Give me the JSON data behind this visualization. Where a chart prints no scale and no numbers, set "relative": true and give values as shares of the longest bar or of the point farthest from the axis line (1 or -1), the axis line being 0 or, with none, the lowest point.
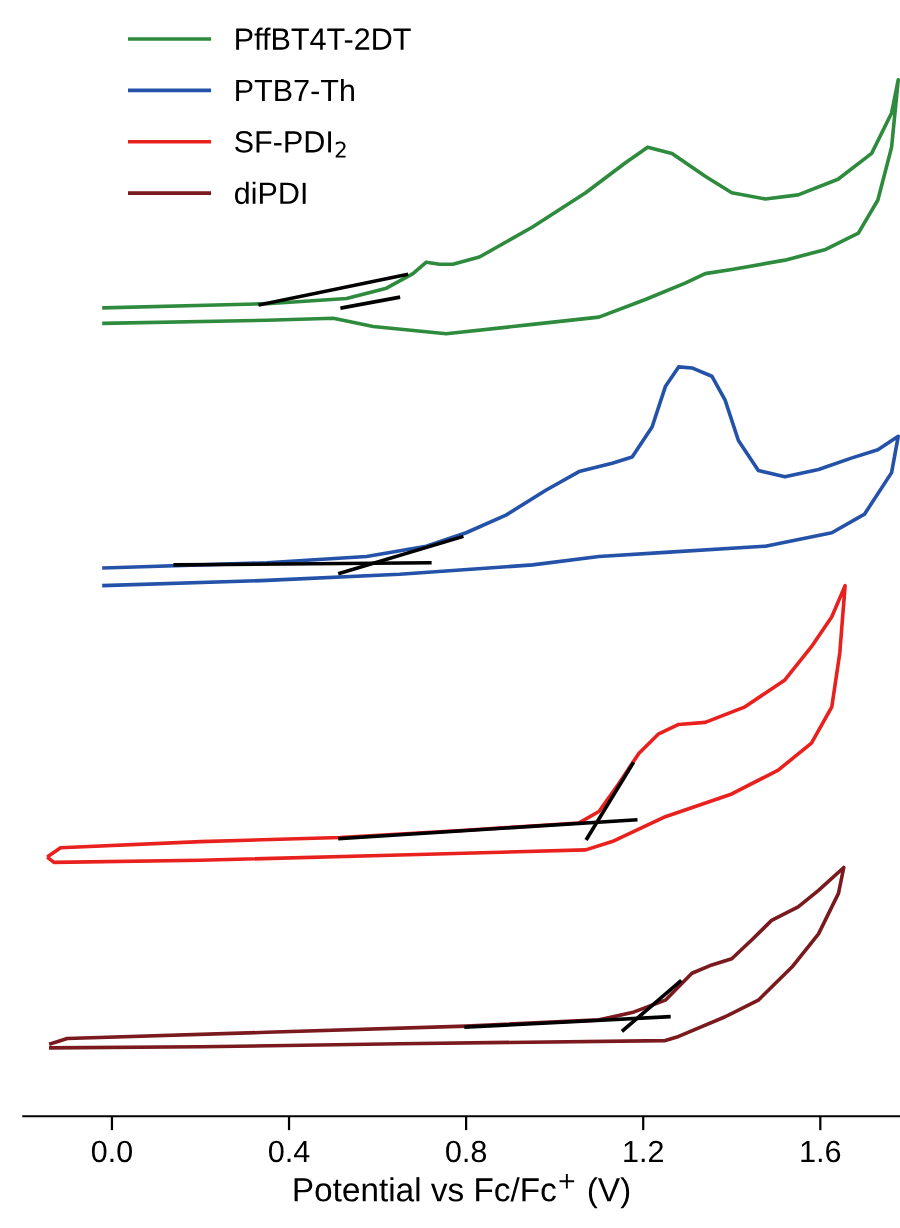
{
  "chart_data": {
    "type": "line",
    "relative": true,
    "xlabel": "Potential vs Fc/Fc$^{+}$ (V)",
    "xlim": [
      -0.2,
      1.78
    ],
    "xticks": [
      {
        "value": 0.0,
        "label": "0.0"
      },
      {
        "value": 0.4,
        "label": "0.4"
      },
      {
        "value": 0.8,
        "label": "0.8"
      },
      {
        "value": 1.2,
        "label": "1.2"
      },
      {
        "value": 1.6,
        "label": "1.6"
      }
    ],
    "grid": false,
    "legend": "top left",
    "marker": "none",
    "line_style": "solid",
    "series": [
      {
        "name": "PffBT4T-2DT",
        "color": "#2e8b3e",
        "x": [
          -0.018,
          0.35,
          0.53,
          0.62,
          0.68,
          0.71,
          0.74,
          0.77,
          0.83,
          0.95,
          1.07,
          1.16,
          1.21,
          1.265,
          1.34,
          1.4,
          1.476,
          1.55,
          1.64,
          1.716,
          1.761,
          1.776,
          1.761,
          1.73,
          1.686,
          1.61,
          1.52,
          1.4,
          1.34,
          1.296,
          1.205,
          1.1,
          0.95,
          0.755,
          0.59,
          0.5,
          0.35,
          -0.018
        ],
        "values": [
          0.78,
          0.784,
          0.789,
          0.799,
          0.813,
          0.824,
          0.822,
          0.822,
          0.829,
          0.858,
          0.891,
          0.92,
          0.935,
          0.929,
          0.907,
          0.891,
          0.885,
          0.889,
          0.904,
          0.929,
          0.968,
          1.0,
          0.935,
          0.884,
          0.852,
          0.836,
          0.826,
          0.817,
          0.813,
          0.804,
          0.788,
          0.771,
          0.764,
          0.755,
          0.762,
          0.77,
          0.768,
          0.765
        ]
      },
      {
        "name": "PTB7-Th",
        "color": "#2352a8",
        "x": [
          -0.018,
          0.35,
          0.575,
          0.71,
          0.8,
          0.89,
          0.98,
          1.055,
          1.13,
          1.175,
          1.22,
          1.25,
          1.28,
          1.31,
          1.355,
          1.385,
          1.415,
          1.46,
          1.52,
          1.596,
          1.67,
          1.73,
          1.776,
          1.761,
          1.7,
          1.626,
          1.476,
          1.25,
          1.1,
          0.95,
          0.65,
          0.35,
          -0.018
        ],
        "values": [
          0.529,
          0.534,
          0.54,
          0.55,
          0.563,
          0.58,
          0.604,
          0.622,
          0.63,
          0.636,
          0.665,
          0.704,
          0.723,
          0.722,
          0.714,
          0.691,
          0.652,
          0.623,
          0.617,
          0.624,
          0.635,
          0.643,
          0.656,
          0.621,
          0.581,
          0.563,
          0.55,
          0.544,
          0.54,
          0.532,
          0.523,
          0.517,
          0.512
        ]
      },
      {
        "name": "SF-PDI$_{2}$",
        "color": "#e8211e",
        "x": [
          -0.143,
          -0.116,
          0.2,
          0.515,
          0.8,
          1.055,
          1.1,
          1.145,
          1.19,
          1.235,
          1.28,
          1.34,
          1.43,
          1.52,
          1.58,
          1.626,
          1.656,
          1.644,
          1.626,
          1.58,
          1.505,
          1.4,
          1.25,
          1.13,
          1.07,
          0.65,
          0.2,
          -0.131,
          -0.143
        ],
        "values": [
          0.251,
          0.259,
          0.265,
          0.269,
          0.276,
          0.283,
          0.294,
          0.321,
          0.35,
          0.369,
          0.378,
          0.38,
          0.395,
          0.421,
          0.453,
          0.482,
          0.512,
          0.447,
          0.395,
          0.36,
          0.334,
          0.311,
          0.289,
          0.265,
          0.257,
          0.252,
          0.247,
          0.245,
          0.249
        ]
      },
      {
        "name": "diPDI",
        "color": "#7b1a1e",
        "x": [
          -0.138,
          -0.101,
          0.35,
          0.8,
          1.1,
          1.175,
          1.25,
          1.31,
          1.355,
          1.4,
          1.445,
          1.49,
          1.55,
          1.596,
          1.653,
          1.641,
          1.596,
          1.536,
          1.46,
          1.385,
          1.28,
          1.25,
          0.65,
          0.2,
          -0.138
        ],
        "values": [
          0.07,
          0.075,
          0.081,
          0.087,
          0.093,
          0.1,
          0.112,
          0.138,
          0.146,
          0.152,
          0.17,
          0.189,
          0.202,
          0.218,
          0.24,
          0.215,
          0.176,
          0.144,
          0.112,
          0.096,
          0.077,
          0.073,
          0.07,
          0.067,
          0.066
        ]
      },
      {
        "color": "#000000",
        "x": [
          0.335,
          0.665
        ],
        "values": [
          0.783,
          0.812
        ]
      },
      {
        "color": "#000000",
        "x": [
          0.52,
          0.647
        ],
        "values": [
          0.78,
          0.79
        ]
      },
      {
        "color": "#000000",
        "x": [
          0.143,
          0.718
        ],
        "values": [
          0.532,
          0.534
        ]
      },
      {
        "color": "#000000",
        "x": [
          0.515,
          0.79
        ],
        "values": [
          0.524,
          0.559
        ]
      },
      {
        "color": "#000000",
        "x": [
          0.515,
          1.183
        ],
        "values": [
          0.268,
          0.286
        ]
      },
      {
        "color": "#000000",
        "x": [
          1.073,
          1.176
        ],
        "values": [
          0.268,
          0.34
        ]
      },
      {
        "color": "#000000",
        "x": [
          0.8,
          1.258
        ],
        "values": [
          0.086,
          0.096
        ]
      },
      {
        "color": "#000000",
        "x": [
          1.155,
          1.283
        ],
        "values": [
          0.083,
          0.13
        ]
      }
    ]
  }
}
